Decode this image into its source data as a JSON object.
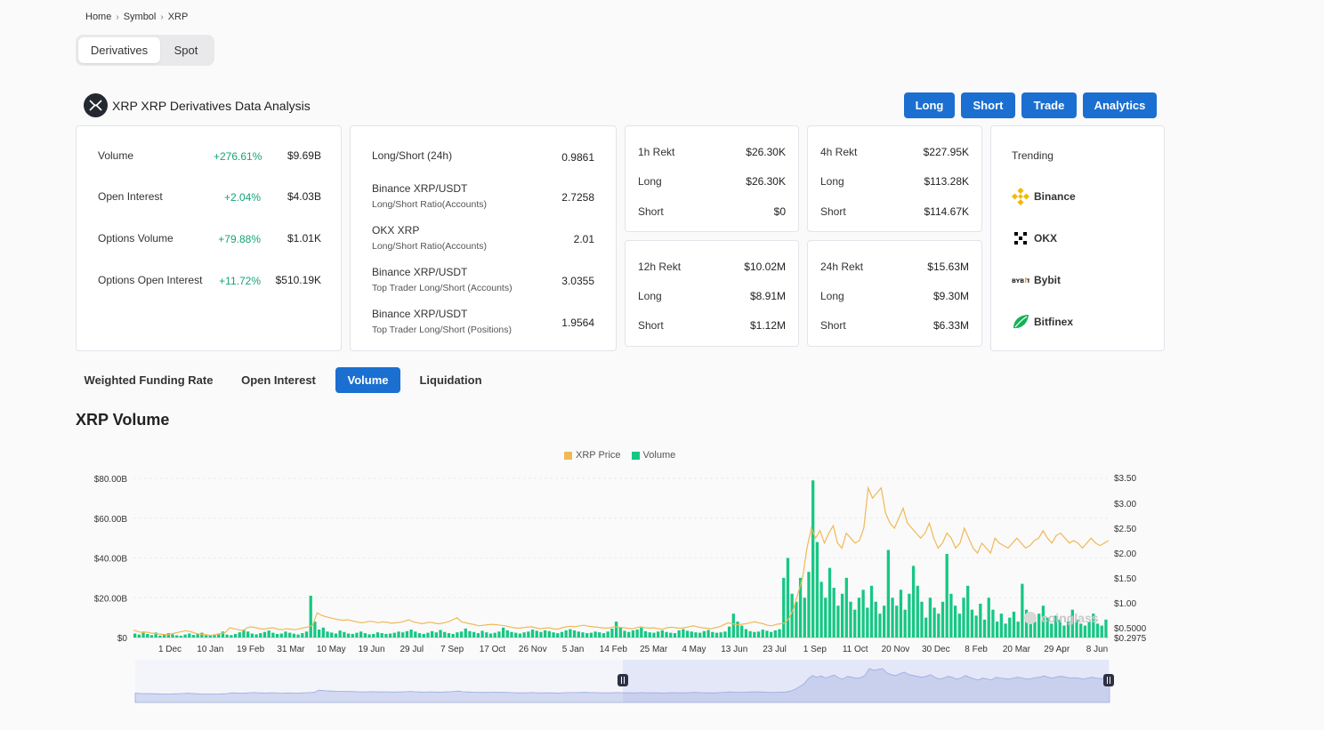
{
  "breadcrumb": [
    "Home",
    "Symbol",
    "XRP"
  ],
  "market_toggle": {
    "selected": "Derivatives",
    "other": "Spot"
  },
  "header": {
    "title": "XRP XRP Derivatives Data Analysis",
    "logo": "xrp-logo-icon"
  },
  "actions": [
    "Long",
    "Short",
    "Trade",
    "Analytics"
  ],
  "overview": [
    {
      "label": "Volume",
      "change": "+276.61%",
      "value": "$9.69B"
    },
    {
      "label": "Open Interest",
      "change": "+2.04%",
      "value": "$4.03B"
    },
    {
      "label": "Options Volume",
      "change": "+79.88%",
      "value": "$1.01K"
    },
    {
      "label": "Options Open Interest",
      "change": "+11.72%",
      "value": "$510.19K"
    }
  ],
  "ratios": [
    {
      "label": "Long/Short (24h)",
      "sub": "",
      "value": "0.9861"
    },
    {
      "label": "Binance XRP/USDT",
      "sub": "Long/Short Ratio(Accounts)",
      "value": "2.7258"
    },
    {
      "label": "OKX XRP",
      "sub": "Long/Short Ratio(Accounts)",
      "value": "2.01"
    },
    {
      "label": "Binance XRP/USDT",
      "sub": "Top Trader Long/Short (Accounts)",
      "value": "3.0355"
    },
    {
      "label": "Binance XRP/USDT",
      "sub": "Top Trader Long/Short (Positions)",
      "value": "1.9564"
    }
  ],
  "rekt": [
    {
      "period": "1h Rekt",
      "total": "$26.30K",
      "long_label": "Long",
      "long": "$26.30K",
      "short_label": "Short",
      "short": "$0"
    },
    {
      "period": "4h Rekt",
      "total": "$227.95K",
      "long_label": "Long",
      "long": "$113.28K",
      "short_label": "Short",
      "short": "$114.67K"
    },
    {
      "period": "12h Rekt",
      "total": "$10.02M",
      "long_label": "Long",
      "long": "$8.91M",
      "short_label": "Short",
      "short": "$1.12M"
    },
    {
      "period": "24h Rekt",
      "total": "$15.63M",
      "long_label": "Long",
      "long": "$9.30M",
      "short_label": "Short",
      "short": "$6.33M"
    }
  ],
  "trending": {
    "title": "Trending",
    "items": [
      {
        "name": "Binance",
        "icon": "binance-icon",
        "color": "#f0b90b"
      },
      {
        "name": "OKX",
        "icon": "okx-icon",
        "color": "#000000"
      },
      {
        "name": "Bybit",
        "icon": "bybit-icon",
        "color": "#222222"
      },
      {
        "name": "Bitfinex",
        "icon": "bitfinex-icon",
        "color": "#16b157"
      }
    ]
  },
  "tabs": [
    {
      "label": "Weighted Funding Rate",
      "active": false
    },
    {
      "label": "Open Interest",
      "active": false
    },
    {
      "label": "Volume",
      "active": true
    },
    {
      "label": "Liquidation",
      "active": false
    }
  ],
  "section_title": "XRP Volume",
  "watermark": "coinglass",
  "chart_data": {
    "type": "bar",
    "series": [
      {
        "name": "XRP Price",
        "color": "#f0b956",
        "axis": "right",
        "kind": "line"
      },
      {
        "name": "Volume",
        "color": "#16c784",
        "axis": "left",
        "kind": "bar"
      }
    ],
    "left_ticks": [
      "$80.00B",
      "$60.00B",
      "$40.00B",
      "$20.00B",
      "$0"
    ],
    "right_ticks": [
      "$3.50",
      "$3.00",
      "$2.50",
      "$2.00",
      "$1.50",
      "$1.00",
      "$0.5000",
      "$0.2975"
    ],
    "x_ticks": [
      "1 Dec",
      "10 Jan",
      "19 Feb",
      "31 Mar",
      "10 May",
      "19 Jun",
      "29 Jul",
      "7 Sep",
      "17 Oct",
      "26 Nov",
      "5 Jan",
      "14 Feb",
      "25 Mar",
      "4 May",
      "13 Jun",
      "23 Jul",
      "1 Sep",
      "11 Oct",
      "20 Nov",
      "30 Dec",
      "8 Feb",
      "20 Mar",
      "29 Apr",
      "8 Jun"
    ],
    "ylim_left": [
      0,
      80
    ],
    "ylim_right": [
      0.2975,
      3.5
    ],
    "volume_b": [
      2,
      1.5,
      3,
      1.8,
      1.2,
      2.5,
      1,
      1.4,
      2.2,
      1.6,
      1.1,
      0.9,
      1.5,
      2,
      1.3,
      1.8,
      2.4,
      1.2,
      1,
      1.6,
      2,
      3,
      1.5,
      1.2,
      1.8,
      2.6,
      4,
      3,
      2,
      1.6,
      2.2,
      2.8,
      3.5,
      2.4,
      1.8,
      2,
      3,
      2.4,
      1.9,
      1.5,
      2.2,
      3,
      21,
      8,
      4,
      5,
      3,
      2.5,
      2,
      3.5,
      2.8,
      2,
      1.8,
      2.4,
      3,
      2.2,
      1.6,
      1.8,
      2.6,
      2.2,
      1.8,
      2,
      2.4,
      3,
      2.6,
      3.2,
      4,
      3,
      2.2,
      1.8,
      2.4,
      3.2,
      2.6,
      3.8,
      2.8,
      2.2,
      1.8,
      2.6,
      3,
      4.5,
      3.2,
      2.8,
      2.2,
      3.4,
      2.6,
      2,
      2.4,
      3,
      5,
      3.6,
      2.8,
      2.4,
      2,
      2.6,
      3,
      4,
      3.4,
      2.8,
      3.6,
      3.2,
      2.6,
      2.2,
      2.8,
      3.6,
      4.2,
      3.6,
      3,
      2.6,
      2.2,
      2.4,
      3,
      2.6,
      2.2,
      3,
      4.5,
      8,
      5,
      3.4,
      2.8,
      3.6,
      4,
      5,
      3.2,
      2.6,
      2.4,
      3,
      3.6,
      2.8,
      2.4,
      2.2,
      3.6,
      4.2,
      3.4,
      3,
      2.6,
      2.4,
      3.2,
      3.8,
      2.8,
      2.4,
      2.6,
      3,
      5.5,
      12,
      8,
      6,
      4.2,
      3.2,
      2.8,
      3,
      4,
      3.4,
      2.8,
      3.6,
      4.2,
      30,
      40,
      22,
      18,
      30,
      20,
      33,
      79,
      48,
      28,
      20,
      35,
      25,
      16,
      22,
      30,
      18,
      14,
      20,
      24,
      15,
      26,
      18,
      12,
      16,
      44,
      20,
      16,
      24,
      14,
      22,
      36,
      26,
      18,
      10,
      20,
      15,
      12,
      18,
      42,
      22,
      16,
      12,
      20,
      26,
      14,
      11,
      17,
      9,
      20,
      14,
      8,
      12,
      7,
      10,
      13,
      8,
      27,
      14,
      9,
      8,
      12,
      16,
      10,
      7,
      11,
      9,
      6,
      8,
      14,
      9,
      7,
      6,
      8,
      12,
      7,
      6,
      9
    ],
    "price": [
      0.45,
      0.42,
      0.4,
      0.41,
      0.39,
      0.38,
      0.37,
      0.36,
      0.36,
      0.38,
      0.4,
      0.42,
      0.44,
      0.42,
      0.39,
      0.37,
      0.36,
      0.35,
      0.34,
      0.36,
      0.38,
      0.4,
      0.5,
      0.48,
      0.46,
      0.44,
      0.5,
      0.52,
      0.5,
      0.48,
      0.47,
      0.49,
      0.5,
      0.47,
      0.46,
      0.48,
      0.47,
      0.46,
      0.48,
      0.5,
      0.52,
      0.55,
      0.8,
      0.75,
      0.72,
      0.7,
      0.68,
      0.66,
      0.65,
      0.66,
      0.64,
      0.62,
      0.6,
      0.61,
      0.63,
      0.62,
      0.6,
      0.62,
      0.61,
      0.59,
      0.6,
      0.61,
      0.63,
      0.66,
      0.62,
      0.6,
      0.58,
      0.6,
      0.61,
      0.59,
      0.58,
      0.6,
      0.62,
      0.66,
      0.7,
      0.62,
      0.6,
      0.58,
      0.56,
      0.54,
      0.55,
      0.56,
      0.57,
      0.56,
      0.55,
      0.54,
      0.52,
      0.5,
      0.49,
      0.5,
      0.51,
      0.52,
      0.5,
      0.48,
      0.49,
      0.5,
      0.48,
      0.47,
      0.5,
      0.52,
      0.53,
      0.52,
      0.54,
      0.55,
      0.53,
      0.52,
      0.51,
      0.5,
      0.49,
      0.5,
      0.52,
      0.51,
      0.5,
      0.49,
      0.48,
      0.5,
      0.52,
      0.5,
      0.49,
      0.5,
      0.48,
      0.47,
      0.5,
      0.51,
      0.5,
      0.49,
      0.5,
      0.52,
      0.54,
      0.52,
      0.5,
      0.49,
      0.48,
      0.5,
      0.52,
      0.56,
      0.6,
      0.58,
      0.56,
      0.57,
      0.58,
      0.6,
      0.62,
      0.6,
      0.58,
      0.55,
      0.54,
      0.57,
      0.58,
      0.6,
      0.7,
      0.9,
      1.2,
      1.5,
      2.1,
      2.5,
      2.3,
      2.45,
      2.2,
      2.4,
      2.55,
      2.2,
      2.1,
      2.4,
      2.3,
      2.2,
      2.25,
      2.5,
      3.3,
      3.1,
      3.2,
      3.3,
      2.8,
      2.6,
      2.5,
      2.7,
      2.9,
      2.6,
      2.5,
      2.4,
      2.3,
      2.4,
      2.6,
      2.3,
      2.1,
      2.2,
      2.4,
      2.3,
      2.1,
      2.2,
      2.5,
      2.3,
      2.1,
      2.0,
      2.2,
      2.1,
      2.0,
      2.3,
      2.2,
      2.15,
      2.1,
      2.2,
      2.3,
      2.2,
      2.1,
      2.15,
      2.25,
      2.3,
      2.45,
      2.3,
      2.2,
      2.35,
      2.4,
      2.3,
      2.2,
      2.25,
      2.2,
      2.1,
      2.2,
      2.3,
      2.2,
      2.15,
      2.2,
      2.25
    ]
  }
}
